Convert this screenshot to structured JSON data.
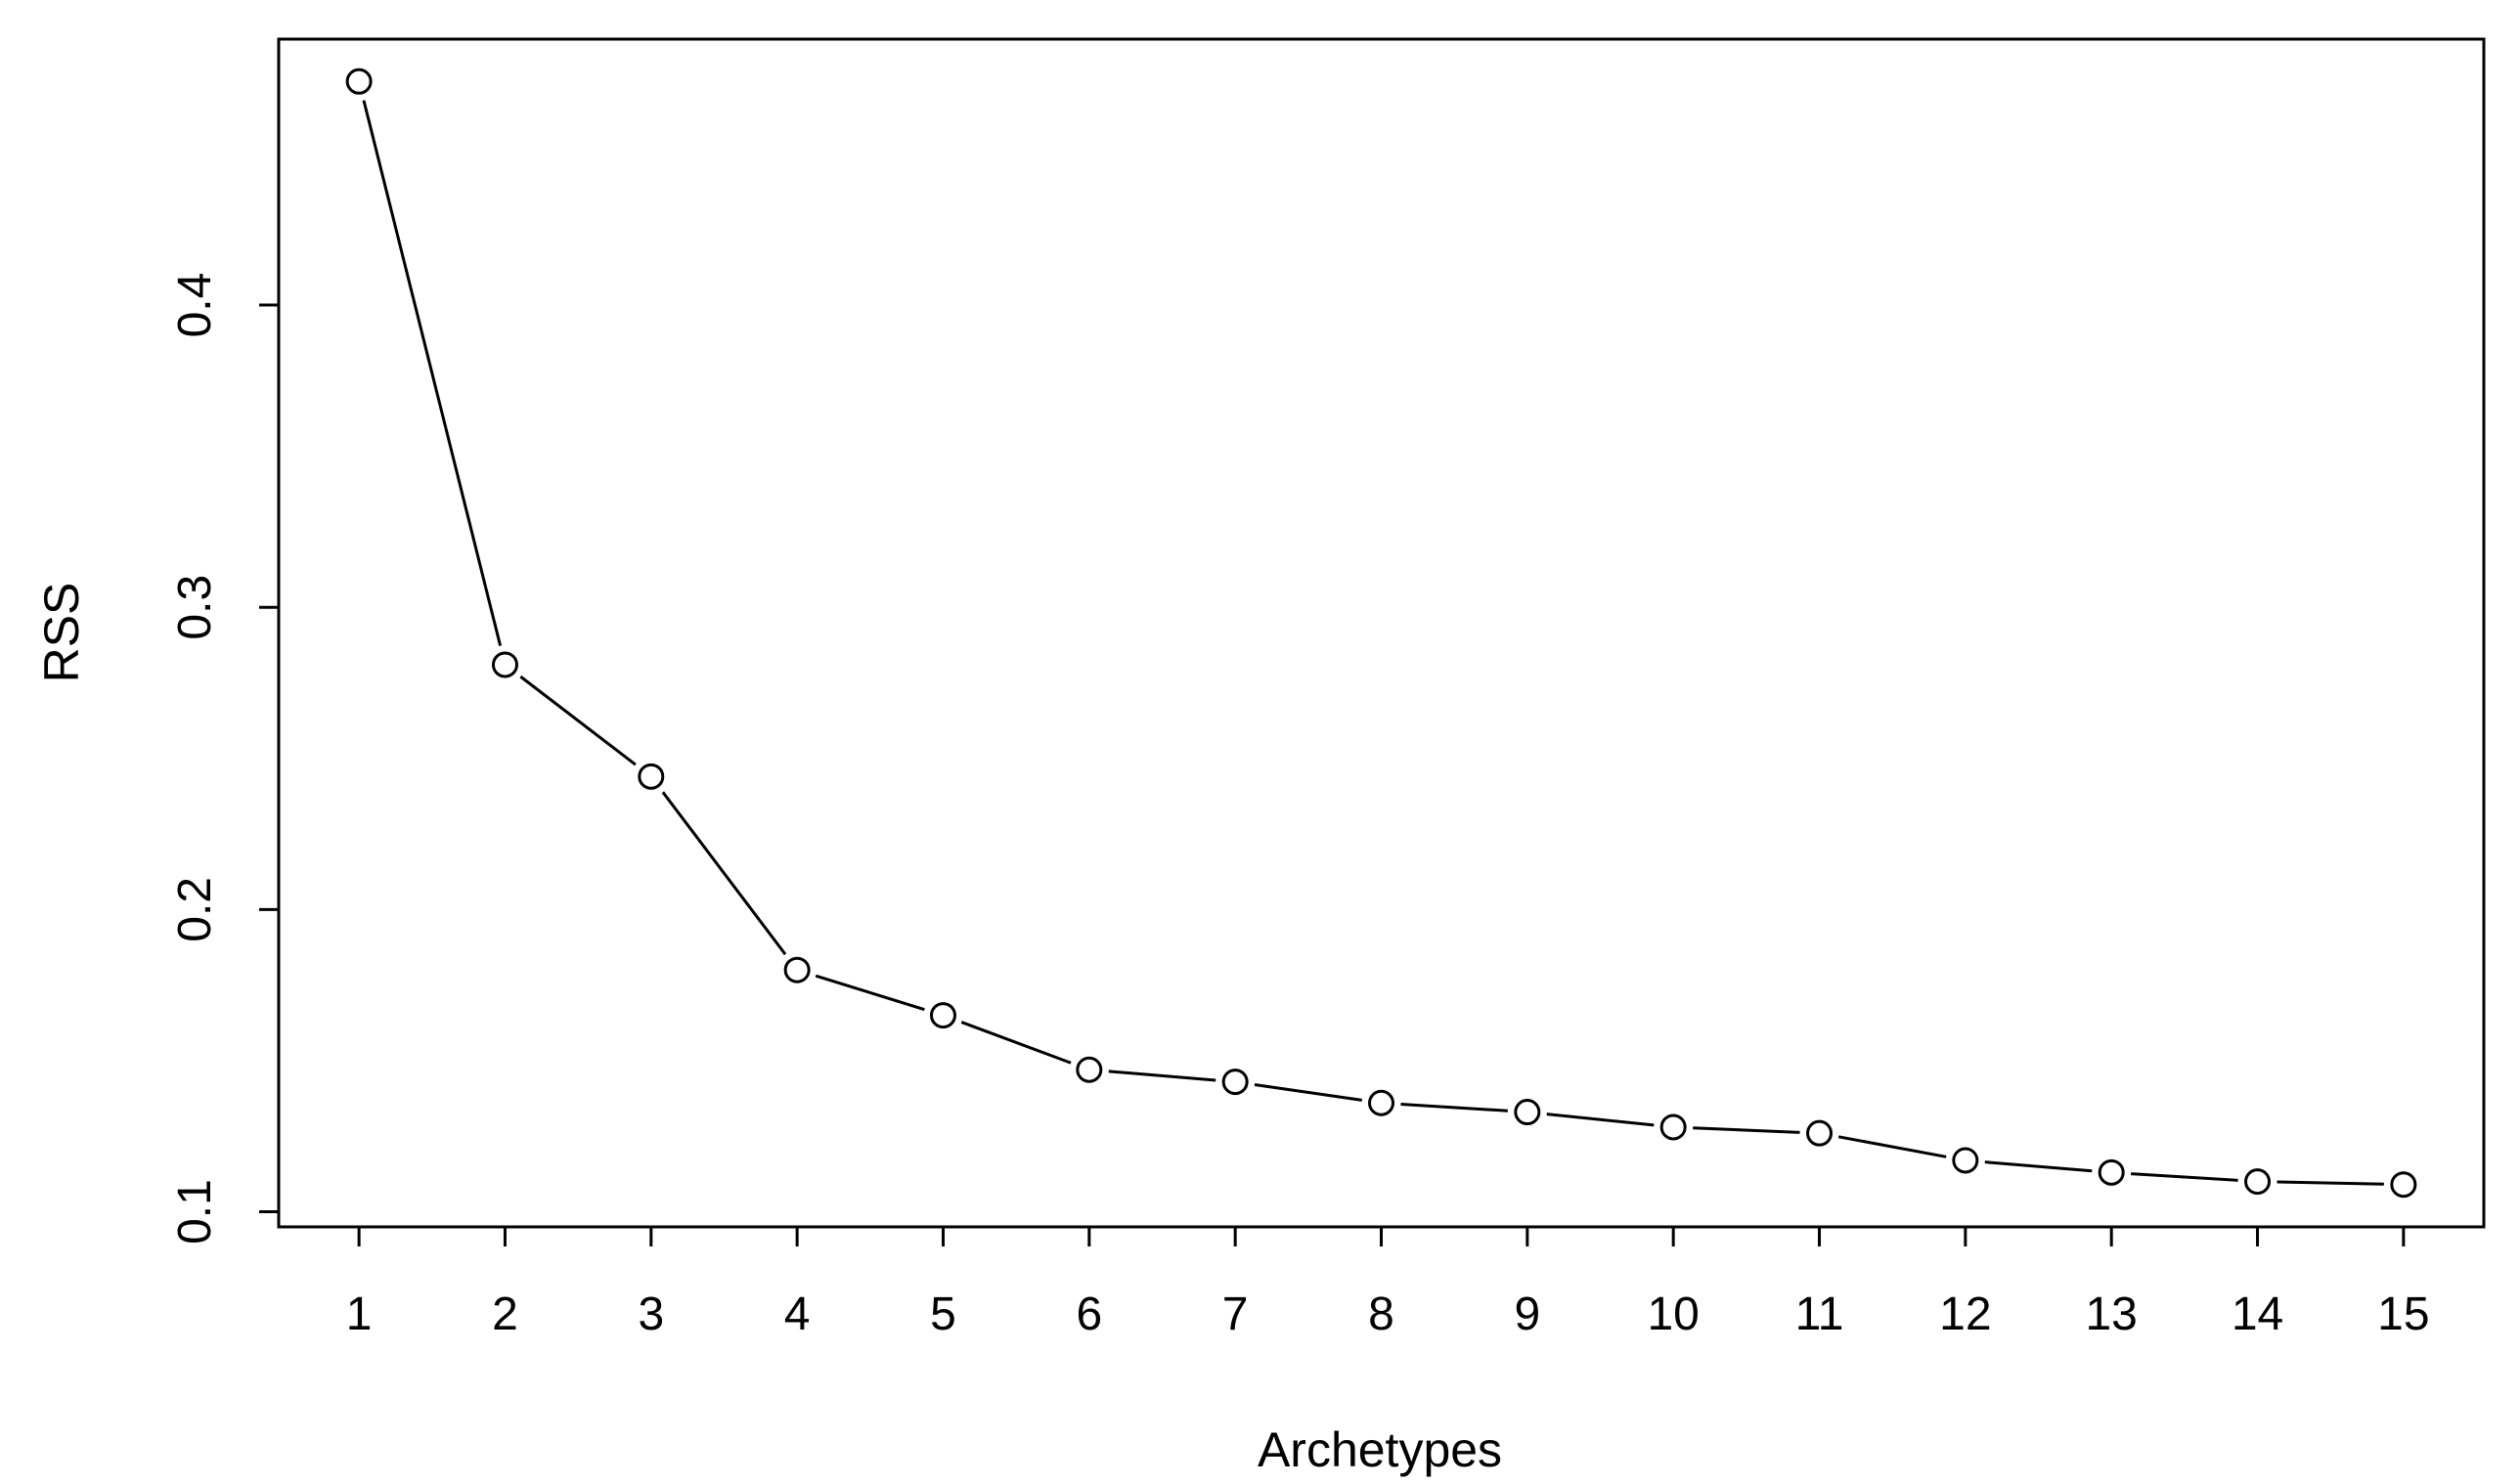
{
  "chart_data": {
    "type": "line",
    "title": "",
    "xlabel": "Archetypes",
    "ylabel": "RSS",
    "x": [
      1,
      2,
      3,
      4,
      5,
      6,
      7,
      8,
      9,
      10,
      11,
      12,
      13,
      14,
      15
    ],
    "series": [
      {
        "values": [
          0.474,
          0.281,
          0.244,
          0.18,
          0.165,
          0.147,
          0.143,
          0.136,
          0.133,
          0.128,
          0.126,
          0.117,
          0.113,
          0.11,
          0.109
        ]
      }
    ],
    "xticks": [
      "1",
      "2",
      "3",
      "4",
      "5",
      "6",
      "7",
      "8",
      "9",
      "10",
      "11",
      "12",
      "13",
      "14",
      "15"
    ],
    "yticks": [
      {
        "value": 0.1,
        "label": "0.1"
      },
      {
        "value": 0.2,
        "label": "0.2"
      },
      {
        "value": 0.3,
        "label": "0.3"
      },
      {
        "value": 0.4,
        "label": "0.4"
      }
    ],
    "xlim": [
      0.45,
      15.55
    ],
    "ylim": [
      0.095,
      0.488
    ],
    "grid": false,
    "legend": "none",
    "marker": "open-circle",
    "colors": {
      "line": "#000000",
      "marker_fill": "#ffffff",
      "marker_stroke": "#000000"
    }
  }
}
